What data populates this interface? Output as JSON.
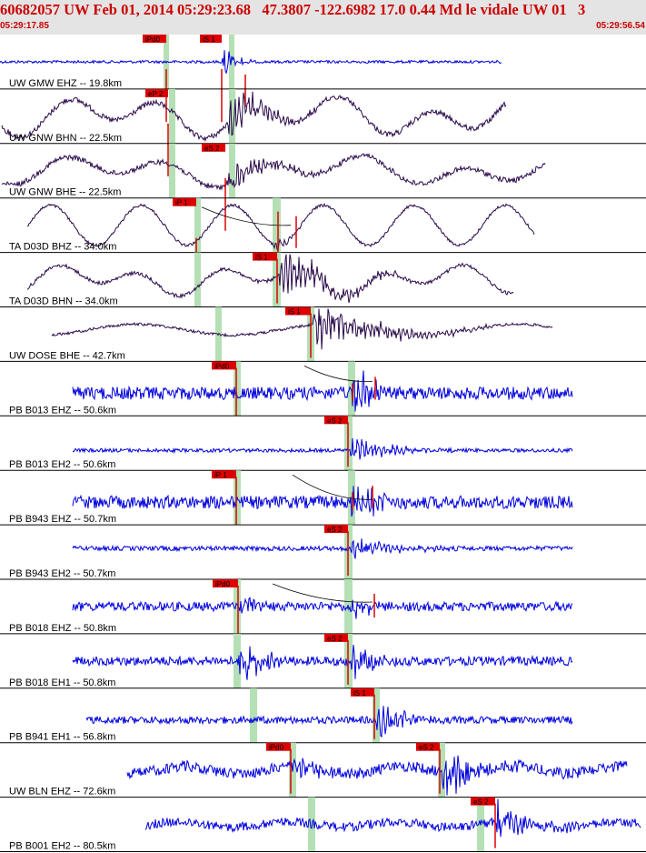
{
  "header": {
    "title": "60682057 UW Feb 01, 2014 05:29:23.68   47.3807 -122.6982 17.0 0.44 Md le vidale UW 01   3",
    "start_time": "05:29:17.85",
    "end_time": "05:29:56.54"
  },
  "colors": {
    "header_bg": "#e4e4e4",
    "header_text": "#cc0000",
    "pick_box": "#dd0000",
    "window": "#b5e0b5",
    "trace_blue": "#0000dd",
    "trace_purple": "#2a0a4a"
  },
  "traces": [
    {
      "label": "UW GMW EHZ -- 19.8km",
      "color": "blue",
      "picks": [
        {
          "label": "iPd0"
        },
        {
          "label": "iS 1"
        }
      ]
    },
    {
      "label": "UW GNW BHN -- 22.5km",
      "color": "purple",
      "picks": [
        {
          "label": "eP 2"
        }
      ]
    },
    {
      "label": "UW GNW BHE -- 22.5km",
      "color": "purple",
      "picks": [
        {
          "label": "eS 2"
        }
      ]
    },
    {
      "label": "TA D03D BHZ -- 34.0km",
      "color": "purple",
      "picks": [
        {
          "label": "iP 1"
        }
      ]
    },
    {
      "label": "TA D03D BHN -- 34.0km",
      "color": "purple",
      "picks": [
        {
          "label": "iS 1"
        }
      ]
    },
    {
      "label": "UW DOSE BHE -- 42.7km",
      "color": "purple",
      "picks": [
        {
          "label": "iS 1"
        }
      ]
    },
    {
      "label": "PB B013 EHZ -- 50.6km",
      "color": "blue",
      "picks": [
        {
          "label": "iPd0"
        }
      ]
    },
    {
      "label": "PB B013 EH2 -- 50.6km",
      "color": "blue",
      "picks": [
        {
          "label": "eS 2"
        }
      ]
    },
    {
      "label": "PB B943 EHZ -- 50.7km",
      "color": "blue",
      "picks": [
        {
          "label": "iP 1"
        }
      ]
    },
    {
      "label": "PB B943 EH2 -- 50.7km",
      "color": "blue",
      "picks": [
        {
          "label": "eS 2"
        }
      ]
    },
    {
      "label": "PB B018 EHZ -- 50.8km",
      "color": "blue",
      "picks": [
        {
          "label": "iPd0"
        }
      ]
    },
    {
      "label": "PB B018 EH1 -- 50.8km",
      "color": "blue",
      "picks": [
        {
          "label": "eS 2"
        }
      ]
    },
    {
      "label": "PB B941 EH1 -- 56.8km",
      "color": "blue",
      "picks": [
        {
          "label": "iS 1"
        }
      ]
    },
    {
      "label": "UW BLN EHZ -- 72.6km",
      "color": "blue",
      "picks": [
        {
          "label": "iPd0"
        },
        {
          "label": "eS 2"
        }
      ]
    },
    {
      "label": "PB B001 EH2 -- 80.5km",
      "color": "blue",
      "picks": [
        {
          "label": "eS 2"
        }
      ]
    }
  ]
}
